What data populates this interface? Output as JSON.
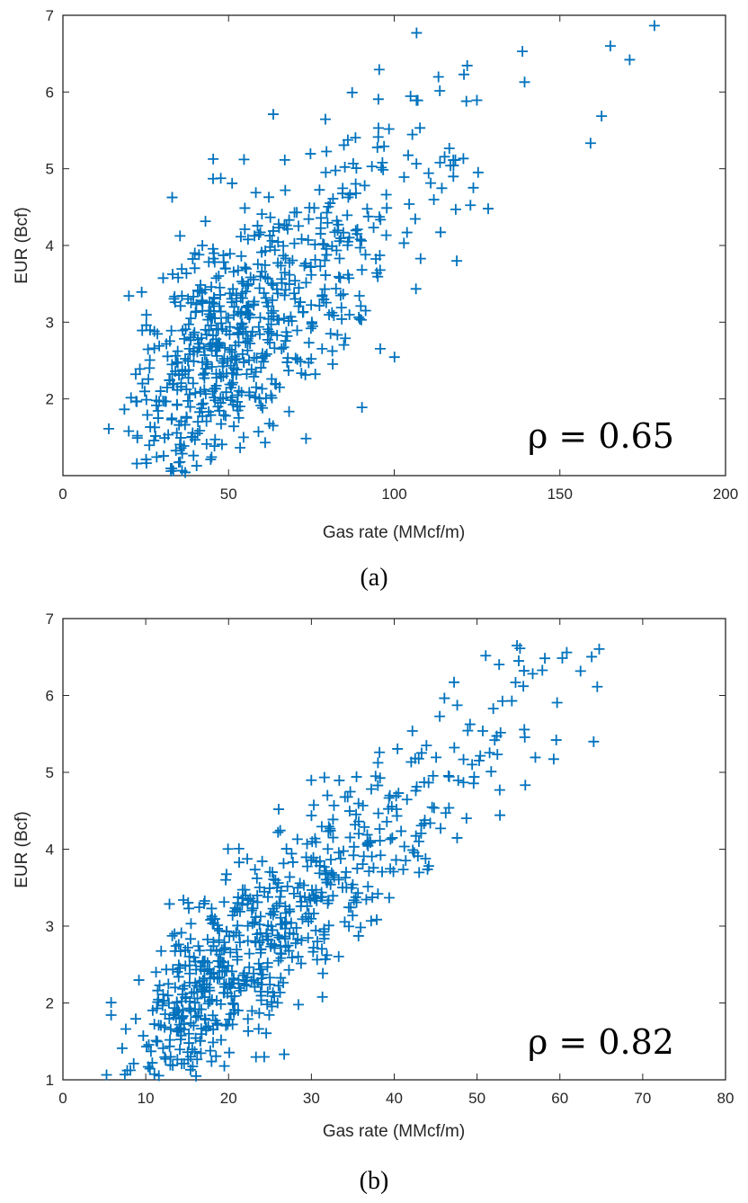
{
  "colors": {
    "marker": "#0072BD",
    "axes": "#262626"
  },
  "chart_data": [
    {
      "type": "scatter",
      "title": "",
      "xlabel": "Gas rate (MMcf/m)",
      "ylabel": "EUR (Bcf)",
      "xlim": [
        0,
        200
      ],
      "ylim": [
        1,
        7
      ],
      "xticks": [
        "0",
        "50",
        "100",
        "150",
        "200"
      ],
      "yticks": [
        "2",
        "3",
        "4",
        "5",
        "6",
        "7"
      ],
      "annotation": "ρ = 0.65",
      "caption": "(a)",
      "marker": "+",
      "grid": false,
      "n_points": 700,
      "correlation": 0.65
    },
    {
      "type": "scatter",
      "title": "",
      "xlabel": "Gas rate (MMcf/m)",
      "ylabel": "EUR (Bcf)",
      "xlim": [
        0,
        80
      ],
      "ylim": [
        1,
        7
      ],
      "xticks": [
        "0",
        "10",
        "20",
        "30",
        "40",
        "50",
        "60",
        "70",
        "80"
      ],
      "yticks": [
        "1",
        "2",
        "3",
        "4",
        "5",
        "6",
        "7"
      ],
      "annotation": "ρ = 0.82",
      "caption": "(b)",
      "marker": "+",
      "grid": false,
      "n_points": 700,
      "correlation": 0.82
    }
  ]
}
